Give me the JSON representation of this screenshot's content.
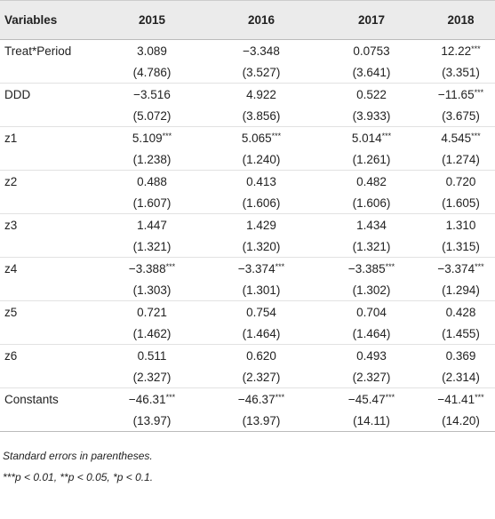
{
  "table": {
    "header": [
      "Variables",
      "2015",
      "2016",
      "2017",
      "2018"
    ],
    "rows": [
      {
        "variable": "Treat*Period",
        "values": [
          "3.089",
          "−3.348",
          "0.0753",
          "12.22***"
        ],
        "errors": [
          "(4.786)",
          "(3.527)",
          "(3.641)",
          "(3.351)"
        ]
      },
      {
        "variable": "DDD",
        "values": [
          "−3.516",
          "4.922",
          "0.522",
          "−11.65***"
        ],
        "errors": [
          "(5.072)",
          "(3.856)",
          "(3.933)",
          "(3.675)"
        ]
      },
      {
        "variable": "z1",
        "values": [
          "5.109***",
          "5.065***",
          "5.014***",
          "4.545***"
        ],
        "errors": [
          "(1.238)",
          "(1.240)",
          "(1.261)",
          "(1.274)"
        ]
      },
      {
        "variable": "z2",
        "values": [
          "0.488",
          "0.413",
          "0.482",
          "0.720"
        ],
        "errors": [
          "(1.607)",
          "(1.606)",
          "(1.606)",
          "(1.605)"
        ]
      },
      {
        "variable": "z3",
        "values": [
          "1.447",
          "1.429",
          "1.434",
          "1.310"
        ],
        "errors": [
          "(1.321)",
          "(1.320)",
          "(1.321)",
          "(1.315)"
        ]
      },
      {
        "variable": "z4",
        "values": [
          "−3.388***",
          "−3.374***",
          "−3.385***",
          "−3.374***"
        ],
        "errors": [
          "(1.303)",
          "(1.301)",
          "(1.302)",
          "(1.294)"
        ]
      },
      {
        "variable": "z5",
        "values": [
          "0.721",
          "0.754",
          "0.704",
          "0.428"
        ],
        "errors": [
          "(1.462)",
          "(1.464)",
          "(1.464)",
          "(1.455)"
        ]
      },
      {
        "variable": "z6",
        "values": [
          "0.511",
          "0.620",
          "0.493",
          "0.369"
        ],
        "errors": [
          "(2.327)",
          "(2.327)",
          "(2.327)",
          "(2.314)"
        ]
      },
      {
        "variable": "Constants",
        "values": [
          "−46.31***",
          "−46.37***",
          "−45.47***",
          "−41.41***"
        ],
        "errors": [
          "(13.97)",
          "(13.97)",
          "(14.11)",
          "(14.20)"
        ]
      }
    ]
  },
  "footnotes": [
    "Standard errors in parentheses.",
    "***p < 0.01, **p < 0.05, *p < 0.1."
  ]
}
